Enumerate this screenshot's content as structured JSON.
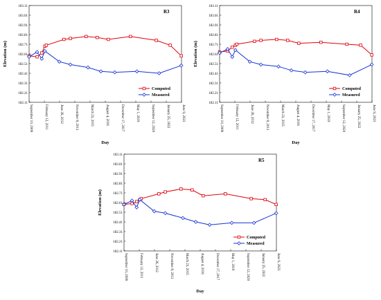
{
  "chart_data": [
    {
      "type": "line",
      "title": "R3",
      "xlabel": "Day",
      "ylabel": "Elevation (m)",
      "ylim": [
        182.11,
        183.11
      ],
      "y_ticks": [
        "182.11",
        "182.21",
        "182.31",
        "182.41",
        "182.51",
        "182.61",
        "182.71",
        "182.81",
        "182.91",
        "183.01",
        "183.11"
      ],
      "x_ticks": [
        "September 10, 2009",
        "February 12, 2011",
        "June 26, 2012",
        "November 8, 2013",
        "March 23, 2015",
        "August 4, 2016",
        "December 17, 2017",
        "May 1, 2019",
        "September 12, 2020",
        "January 25, 2022",
        "June 9, 2023"
      ],
      "xlim": [
        "2009-09-10",
        "2023-06-09"
      ],
      "legend_position": "bottom-right",
      "series": [
        {
          "name": "Computed",
          "color": "#e0000a",
          "marker": "square",
          "x": [
            "2009-09-10",
            "2010-06-01",
            "2010-11-01",
            "2011-02-12",
            "2011-04-01",
            "2012-11-01",
            "2013-06-01",
            "2014-11-01",
            "2015-11-01",
            "2016-11-01",
            "2018-11-01",
            "2021-03-01",
            "2022-06-01",
            "2023-06-01"
          ],
          "y": [
            182.59,
            182.58,
            182.62,
            182.69,
            182.7,
            182.76,
            182.77,
            182.79,
            182.78,
            182.76,
            182.79,
            182.75,
            182.7,
            182.59
          ]
        },
        {
          "name": "Measured",
          "color": "#1432d2",
          "marker": "diamond",
          "x": [
            "2009-09-10",
            "2010-06-01",
            "2010-11-01",
            "2011-02-12",
            "2012-06-01",
            "2013-06-01",
            "2015-01-01",
            "2016-03-01",
            "2017-06-01",
            "2019-06-01",
            "2021-06-01",
            "2023-06-01"
          ],
          "y": [
            182.58,
            182.63,
            182.56,
            182.64,
            182.53,
            182.5,
            182.47,
            182.43,
            182.42,
            182.43,
            182.41,
            182.49
          ]
        }
      ]
    },
    {
      "type": "line",
      "title": "R4",
      "xlabel": "Day",
      "ylabel": "Elevation (m)",
      "ylim": [
        182.11,
        183.11
      ],
      "y_ticks": [
        "182.11",
        "182.21",
        "182.31",
        "182.41",
        "182.51",
        "182.61",
        "182.71",
        "182.81",
        "182.91",
        "183.01",
        "183.11"
      ],
      "x_ticks": [
        "September 10, 2009",
        "February 12, 2011",
        "June 26, 2012",
        "November 8, 2013",
        "March 23, 2015",
        "August 4, 2016",
        "December 17, 2017",
        "May 1, 2019",
        "September 12, 2020",
        "January 25, 2022",
        "June 9, 2023"
      ],
      "xlim": [
        "2009-09-10",
        "2023-06-09"
      ],
      "legend_position": "bottom-right",
      "series": [
        {
          "name": "Computed",
          "color": "#e0000a",
          "marker": "square",
          "x": [
            "2009-09-10",
            "2010-06-01",
            "2010-11-01",
            "2011-02-12",
            "2011-04-01",
            "2012-11-01",
            "2013-06-01",
            "2014-11-01",
            "2015-11-01",
            "2016-11-01",
            "2018-11-01",
            "2021-03-01",
            "2022-06-01",
            "2023-06-01"
          ],
          "y": [
            182.63,
            182.64,
            182.68,
            182.7,
            182.71,
            182.74,
            182.75,
            182.76,
            182.75,
            182.72,
            182.73,
            182.71,
            182.7,
            182.6
          ]
        },
        {
          "name": "Measured",
          "color": "#1432d2",
          "marker": "diamond",
          "x": [
            "2009-09-10",
            "2010-06-01",
            "2010-11-01",
            "2011-02-12",
            "2012-06-01",
            "2013-06-01",
            "2015-01-01",
            "2016-03-01",
            "2017-06-01",
            "2019-06-01",
            "2021-06-01",
            "2023-06-01"
          ],
          "y": [
            182.62,
            182.66,
            182.58,
            182.65,
            182.53,
            182.5,
            182.48,
            182.44,
            182.42,
            182.43,
            182.39,
            182.5
          ]
        }
      ]
    },
    {
      "type": "line",
      "title": "R5",
      "xlabel": "Day",
      "ylabel": "Elevation (m)",
      "ylim": [
        182.11,
        183.11
      ],
      "y_ticks": [
        "182.11",
        "182.21",
        "182.31",
        "182.41",
        "182.51",
        "182.61",
        "182.71",
        "182.81",
        "182.91",
        "183.01",
        "183.11"
      ],
      "x_ticks": [
        "September 10, 2009",
        "February 12, 2011",
        "June 26, 2012",
        "November 8, 2013",
        "March 23, 2015",
        "August 4, 2016",
        "December 17, 2017",
        "May 1, 2019",
        "September 12, 2020",
        "January 25, 2022",
        "June 9, 2023"
      ],
      "xlim": [
        "2009-09-10",
        "2023-06-09"
      ],
      "legend_position": "bottom-right",
      "series": [
        {
          "name": "Computed",
          "color": "#e0000a",
          "marker": "square",
          "x": [
            "2009-09-10",
            "2010-06-01",
            "2010-11-01",
            "2011-02-12",
            "2011-04-01",
            "2012-11-01",
            "2013-06-01",
            "2014-11-01",
            "2015-11-01",
            "2016-11-01",
            "2018-11-01",
            "2021-03-01",
            "2022-06-01",
            "2023-06-01"
          ],
          "y": [
            182.59,
            182.6,
            182.62,
            182.64,
            182.65,
            182.7,
            182.72,
            182.75,
            182.74,
            182.68,
            182.7,
            182.65,
            182.64,
            182.59
          ]
        },
        {
          "name": "Measured",
          "color": "#1432d2",
          "marker": "diamond",
          "x": [
            "2009-09-10",
            "2010-06-01",
            "2010-11-01",
            "2011-02-12",
            "2012-06-01",
            "2013-06-01",
            "2015-01-01",
            "2016-03-01",
            "2017-06-01",
            "2019-06-01",
            "2021-06-01",
            "2023-06-01"
          ],
          "y": [
            182.59,
            182.63,
            182.56,
            182.64,
            182.52,
            182.5,
            182.45,
            182.41,
            182.38,
            182.4,
            182.4,
            182.5
          ]
        }
      ]
    }
  ]
}
